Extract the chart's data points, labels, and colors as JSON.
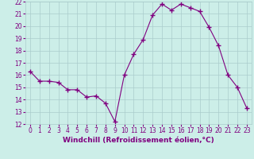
{
  "x": [
    0,
    1,
    2,
    3,
    4,
    5,
    6,
    7,
    8,
    9,
    10,
    11,
    12,
    13,
    14,
    15,
    16,
    17,
    18,
    19,
    20,
    21,
    22,
    23
  ],
  "y": [
    16.3,
    15.5,
    15.5,
    15.4,
    14.8,
    14.8,
    14.2,
    14.3,
    13.7,
    12.2,
    16.0,
    17.7,
    18.9,
    20.9,
    21.8,
    21.3,
    21.8,
    21.5,
    21.2,
    19.9,
    18.4,
    16.0,
    15.0,
    13.3
  ],
  "line_color": "#800080",
  "marker": "+",
  "marker_size": 4,
  "bg_color": "#cceee8",
  "grid_color": "#aacccc",
  "xlabel": "Windchill (Refroidissement éolien,°C)",
  "xlim": [
    -0.5,
    23.5
  ],
  "ylim": [
    12,
    22
  ],
  "yticks": [
    12,
    13,
    14,
    15,
    16,
    17,
    18,
    19,
    20,
    21,
    22
  ],
  "xticks": [
    0,
    1,
    2,
    3,
    4,
    5,
    6,
    7,
    8,
    9,
    10,
    11,
    12,
    13,
    14,
    15,
    16,
    17,
    18,
    19,
    20,
    21,
    22,
    23
  ],
  "tick_fontsize": 5.5,
  "xlabel_fontsize": 6.5,
  "label_color": "#800080"
}
